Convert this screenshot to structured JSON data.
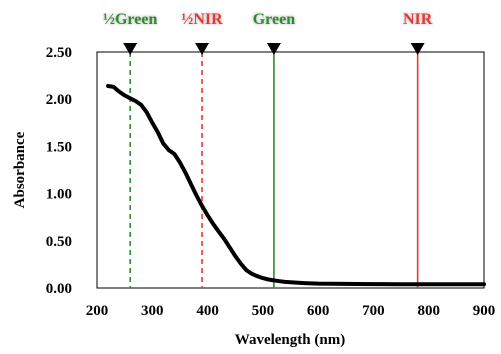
{
  "chart_data": {
    "type": "line",
    "xlabel": "Wavelength (nm)",
    "ylabel": "Absorbance",
    "xlim": [
      200,
      900
    ],
    "ylim": [
      0,
      2.5
    ],
    "x_ticks": [
      "200",
      "300",
      "400",
      "500",
      "600",
      "700",
      "800",
      "900"
    ],
    "y_ticks": [
      "0.00",
      "0.50",
      "1.00",
      "1.50",
      "2.00",
      "2.50"
    ],
    "grid": false,
    "series": [
      {
        "color": "#000000",
        "x": [
          220,
          230,
          240,
          250,
          260,
          270,
          280,
          290,
          300,
          310,
          320,
          330,
          340,
          350,
          360,
          370,
          380,
          390,
          400,
          410,
          420,
          430,
          440,
          450,
          460,
          470,
          480,
          490,
          500,
          510,
          520,
          530,
          540,
          550,
          575,
          600,
          650,
          700,
          750,
          800,
          850,
          900
        ],
        "y": [
          2.14,
          2.13,
          2.08,
          2.04,
          2.01,
          1.98,
          1.94,
          1.86,
          1.75,
          1.65,
          1.53,
          1.46,
          1.42,
          1.33,
          1.22,
          1.1,
          0.98,
          0.87,
          0.77,
          0.68,
          0.6,
          0.52,
          0.43,
          0.34,
          0.26,
          0.19,
          0.15,
          0.125,
          0.105,
          0.09,
          0.08,
          0.072,
          0.065,
          0.06,
          0.052,
          0.047,
          0.043,
          0.041,
          0.04,
          0.04,
          0.04,
          0.04
        ]
      }
    ],
    "markers": [
      {
        "label": "½Green",
        "x": 260,
        "color": "#2e8b2e",
        "dashed": true
      },
      {
        "label": "½NIR",
        "x": 390,
        "color": "#e53935",
        "dashed": true
      },
      {
        "label": "Green",
        "x": 520,
        "color": "#2e8b2e",
        "dashed": false
      },
      {
        "label": "NIR",
        "x": 780,
        "color": "#e53935",
        "dashed": false
      }
    ]
  }
}
